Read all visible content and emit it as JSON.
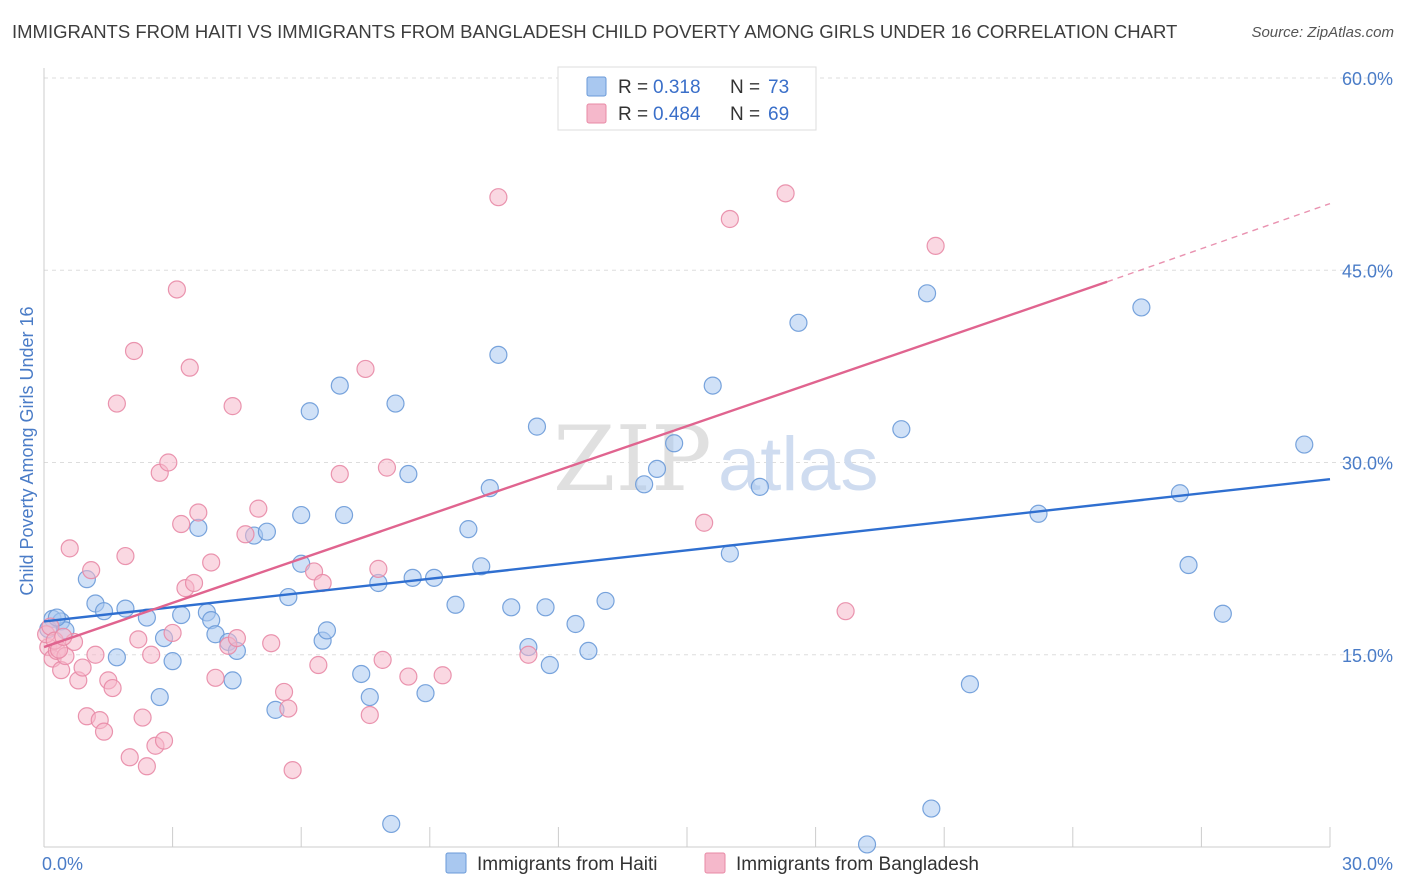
{
  "title": "IMMIGRANTS FROM HAITI VS IMMIGRANTS FROM BANGLADESH CHILD POVERTY AMONG GIRLS UNDER 16 CORRELATION CHART",
  "source": "Source: ZipAtlas.com",
  "watermark": {
    "zip": "ZIP",
    "atlas": "atlas"
  },
  "legend_top": [
    {
      "r_label": "R =",
      "r_value": "0.318",
      "n_label": "N =",
      "n_value": "73",
      "color": "#a9c8f0"
    },
    {
      "r_label": "R =",
      "r_value": "0.484",
      "n_label": "N =",
      "n_value": "69",
      "color": "#f5b8cb"
    }
  ],
  "chart_data": {
    "type": "scatter",
    "title": "IMMIGRANTS FROM HAITI VS IMMIGRANTS FROM BANGLADESH CHILD POVERTY AMONG GIRLS UNDER 16 CORRELATION CHART",
    "xlabel": "",
    "ylabel": "Child Poverty Among Girls Under 16",
    "xlim": [
      0,
      30
    ],
    "ylim": [
      0,
      60
    ],
    "x_tick_labels": [
      "0.0%",
      "30.0%"
    ],
    "y_ticks": [
      15,
      30,
      45,
      60
    ],
    "y_tick_labels": [
      "15.0%",
      "30.0%",
      "45.0%",
      "60.0%"
    ],
    "grid": "horizontal dashed",
    "legend_position": "top-center",
    "series": [
      {
        "name": "Immigrants from Haiti",
        "color": "#a9c8f0",
        "stroke": "#6a9ad8",
        "trend_color": "#2f6fd0",
        "trend": {
          "x0": 0,
          "y0": 17.6,
          "x1": 30,
          "y1": 28.7
        },
        "points": [
          [
            0.2,
            17.8
          ],
          [
            0.4,
            17.6
          ],
          [
            0.5,
            16.9
          ],
          [
            1.0,
            20.9
          ],
          [
            1.2,
            19.0
          ],
          [
            1.4,
            18.4
          ],
          [
            1.7,
            14.8
          ],
          [
            1.9,
            18.6
          ],
          [
            2.4,
            17.9
          ],
          [
            2.7,
            11.7
          ],
          [
            2.8,
            16.3
          ],
          [
            3.0,
            14.5
          ],
          [
            3.2,
            18.1
          ],
          [
            3.6,
            24.9
          ],
          [
            3.8,
            18.3
          ],
          [
            3.9,
            17.7
          ],
          [
            4.0,
            16.6
          ],
          [
            4.3,
            16.0
          ],
          [
            4.4,
            13.0
          ],
          [
            4.5,
            15.3
          ],
          [
            4.9,
            24.3
          ],
          [
            5.2,
            24.6
          ],
          [
            5.4,
            10.7
          ],
          [
            5.7,
            19.5
          ],
          [
            6.0,
            25.9
          ],
          [
            6.0,
            22.1
          ],
          [
            6.2,
            34.0
          ],
          [
            6.5,
            16.1
          ],
          [
            6.6,
            16.9
          ],
          [
            6.9,
            36.0
          ],
          [
            7.0,
            25.9
          ],
          [
            7.4,
            13.5
          ],
          [
            7.6,
            11.7
          ],
          [
            7.8,
            20.6
          ],
          [
            8.1,
            1.8
          ],
          [
            8.2,
            34.6
          ],
          [
            8.5,
            29.1
          ],
          [
            8.6,
            21.0
          ],
          [
            8.9,
            12.0
          ],
          [
            9.1,
            21.0
          ],
          [
            9.6,
            18.9
          ],
          [
            9.9,
            24.8
          ],
          [
            10.2,
            21.9
          ],
          [
            10.4,
            28.0
          ],
          [
            10.6,
            38.4
          ],
          [
            10.9,
            18.7
          ],
          [
            11.3,
            15.6
          ],
          [
            11.5,
            32.8
          ],
          [
            11.7,
            18.7
          ],
          [
            11.8,
            14.2
          ],
          [
            12.4,
            17.4
          ],
          [
            12.7,
            15.3
          ],
          [
            13.1,
            19.2
          ],
          [
            14.0,
            28.3
          ],
          [
            14.3,
            29.5
          ],
          [
            14.7,
            31.5
          ],
          [
            15.6,
            36.0
          ],
          [
            16.0,
            22.9
          ],
          [
            16.7,
            28.1
          ],
          [
            17.6,
            40.9
          ],
          [
            19.2,
            0.2
          ],
          [
            20.0,
            32.6
          ],
          [
            20.6,
            43.2
          ],
          [
            20.7,
            3.0
          ],
          [
            21.6,
            12.7
          ],
          [
            23.2,
            26.0
          ],
          [
            25.6,
            42.1
          ],
          [
            26.5,
            27.6
          ],
          [
            26.7,
            22.0
          ],
          [
            27.5,
            18.2
          ],
          [
            29.4,
            31.4
          ],
          [
            0.1,
            17.0
          ],
          [
            0.3,
            17.9
          ]
        ]
      },
      {
        "name": "Immigrants from Bangladesh",
        "color": "#f5b8cb",
        "stroke": "#e88aa6",
        "trend_color": "#e0648f",
        "trend": {
          "x0": 0,
          "y0": 15.6,
          "x1": 24.8,
          "y1": 44.1
        },
        "trend_dashed": {
          "x0": 24.8,
          "y0": 44.1,
          "x1": 30,
          "y1": 50.2
        },
        "points": [
          [
            0.1,
            15.6
          ],
          [
            0.2,
            14.7
          ],
          [
            0.3,
            15.3
          ],
          [
            0.4,
            13.8
          ],
          [
            0.5,
            14.9
          ],
          [
            0.6,
            23.3
          ],
          [
            0.7,
            16.0
          ],
          [
            0.8,
            13.0
          ],
          [
            0.9,
            14.0
          ],
          [
            1.0,
            10.2
          ],
          [
            1.1,
            21.6
          ],
          [
            1.2,
            15.0
          ],
          [
            1.3,
            9.9
          ],
          [
            1.4,
            9.0
          ],
          [
            1.5,
            13.0
          ],
          [
            1.6,
            12.4
          ],
          [
            1.7,
            34.6
          ],
          [
            1.9,
            22.7
          ],
          [
            2.0,
            7.0
          ],
          [
            2.1,
            38.7
          ],
          [
            2.2,
            16.2
          ],
          [
            2.3,
            10.1
          ],
          [
            2.4,
            6.3
          ],
          [
            2.5,
            15.0
          ],
          [
            2.6,
            7.9
          ],
          [
            2.7,
            29.2
          ],
          [
            2.8,
            8.3
          ],
          [
            2.9,
            30.0
          ],
          [
            3.0,
            16.7
          ],
          [
            3.1,
            43.5
          ],
          [
            3.2,
            25.2
          ],
          [
            3.3,
            20.2
          ],
          [
            3.4,
            37.4
          ],
          [
            3.5,
            20.6
          ],
          [
            3.6,
            26.1
          ],
          [
            3.9,
            22.2
          ],
          [
            4.0,
            13.2
          ],
          [
            4.3,
            15.7
          ],
          [
            4.4,
            34.4
          ],
          [
            4.5,
            16.3
          ],
          [
            4.7,
            24.4
          ],
          [
            5.0,
            26.4
          ],
          [
            5.3,
            15.9
          ],
          [
            5.6,
            12.1
          ],
          [
            5.7,
            10.8
          ],
          [
            5.8,
            6.0
          ],
          [
            6.3,
            21.5
          ],
          [
            6.4,
            14.2
          ],
          [
            6.5,
            20.6
          ],
          [
            6.9,
            29.1
          ],
          [
            7.5,
            37.3
          ],
          [
            7.6,
            10.3
          ],
          [
            7.8,
            21.7
          ],
          [
            7.9,
            14.6
          ],
          [
            8.0,
            29.6
          ],
          [
            8.5,
            13.3
          ],
          [
            9.3,
            13.4
          ],
          [
            10.6,
            50.7
          ],
          [
            11.3,
            15.0
          ],
          [
            15.4,
            25.3
          ],
          [
            16.0,
            49.0
          ],
          [
            17.3,
            51.0
          ],
          [
            18.7,
            18.4
          ],
          [
            20.8,
            46.9
          ],
          [
            0.05,
            16.6
          ],
          [
            0.15,
            17.2
          ],
          [
            0.25,
            16.1
          ],
          [
            0.35,
            15.4
          ],
          [
            0.45,
            16.4
          ]
        ]
      }
    ]
  },
  "bottom_legend": [
    {
      "label": "Immigrants from Haiti"
    },
    {
      "label": "Immigrants from Bangladesh"
    }
  ]
}
